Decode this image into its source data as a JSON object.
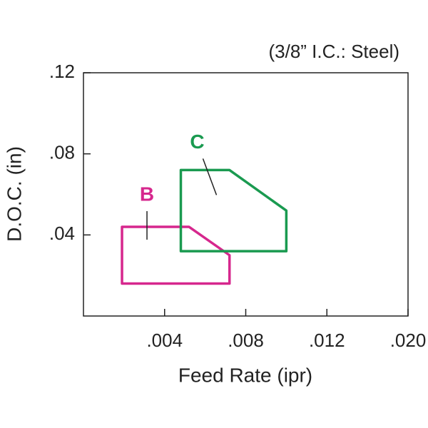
{
  "chart_data": {
    "type": "area",
    "subtitle": "(3/8” I.C.: Steel)",
    "x_label": "Feed Rate (ipr)",
    "y_label": "D.O.C. (in)",
    "xlim": [
      0,
      0.02
    ],
    "xticks": [
      {
        "value": 0.004,
        "label": ".004"
      },
      {
        "value": 0.008,
        "label": ".008"
      },
      {
        "value": 0.012,
        "label": ".012"
      },
      {
        "value": 0.02,
        "label": ".020"
      }
    ],
    "ylim": [
      0,
      0.12
    ],
    "yticks": [
      {
        "value": 0.04,
        "label": ".04"
      },
      {
        "value": 0.08,
        "label": ".08"
      },
      {
        "value": 0.12,
        "label": ".12"
      }
    ],
    "series": [
      {
        "name": "B",
        "color": "#d6278d",
        "x": [
          0.0019,
          0.0072,
          0.0072,
          0.0052,
          0.0019
        ],
        "y": [
          0.016,
          0.016,
          0.03,
          0.044,
          0.044
        ]
      },
      {
        "name": "C",
        "color": "#1a9a50",
        "x": [
          0.0048,
          0.01,
          0.01,
          0.0072,
          0.0048
        ],
        "y": [
          0.032,
          0.032,
          0.052,
          0.072,
          0.072
        ]
      }
    ]
  }
}
